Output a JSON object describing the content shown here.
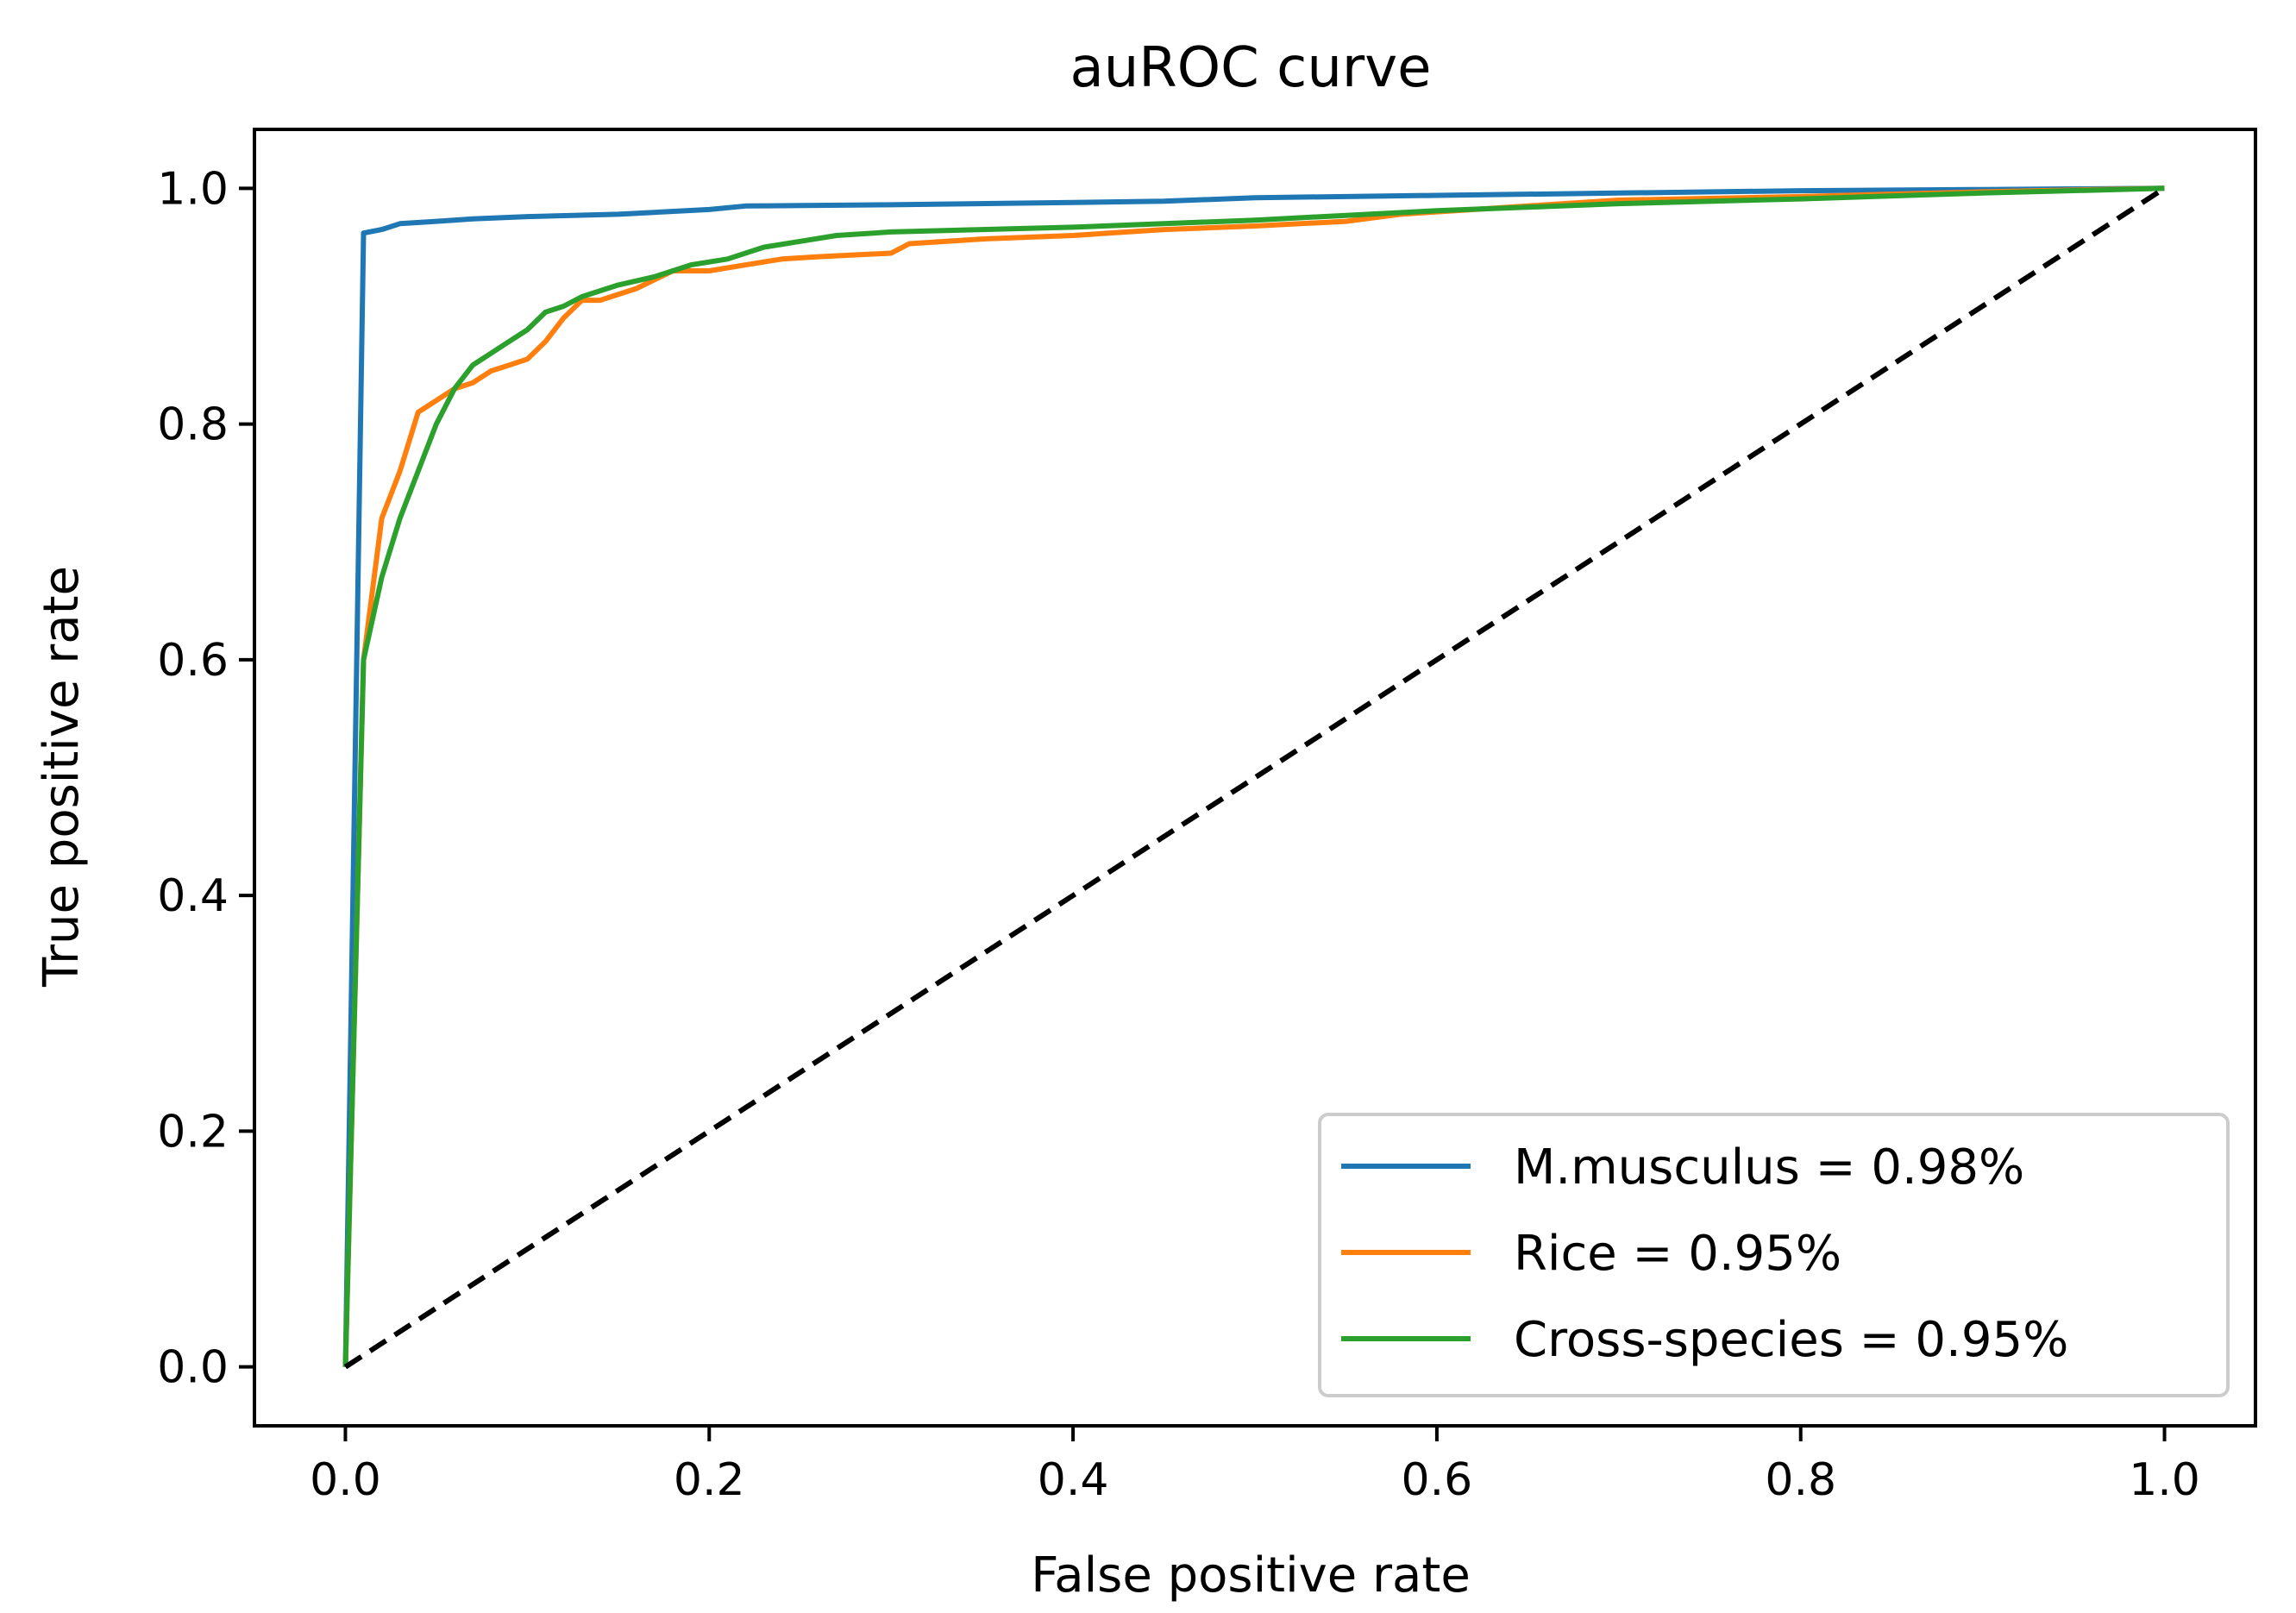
{
  "chart_data": {
    "type": "line",
    "title": "auROC curve",
    "xlabel": "False positive rate",
    "ylabel": "True positive rate",
    "xlim": [
      -0.05,
      1.05
    ],
    "ylim": [
      -0.05,
      1.05
    ],
    "xticks": [
      0.0,
      0.2,
      0.4,
      0.6,
      0.8,
      1.0
    ],
    "yticks": [
      0.0,
      0.2,
      0.4,
      0.6,
      0.8,
      1.0
    ],
    "xtick_labels": [
      "0.0",
      "0.2",
      "0.4",
      "0.6",
      "0.8",
      "1.0"
    ],
    "ytick_labels": [
      "0.0",
      "0.2",
      "0.4",
      "0.6",
      "0.8",
      "1.0"
    ],
    "legend_position": "lower-right",
    "series": [
      {
        "name": "M.musculus = 0.98%",
        "color": "#1f77b4",
        "points": [
          [
            0.0,
            0.0
          ],
          [
            0.01,
            0.962
          ],
          [
            0.02,
            0.965
          ],
          [
            0.03,
            0.97
          ],
          [
            0.05,
            0.972
          ],
          [
            0.07,
            0.974
          ],
          [
            0.1,
            0.976
          ],
          [
            0.15,
            0.978
          ],
          [
            0.2,
            0.982
          ],
          [
            0.22,
            0.985
          ],
          [
            0.3,
            0.986
          ],
          [
            0.4,
            0.988
          ],
          [
            0.45,
            0.989
          ],
          [
            0.5,
            0.992
          ],
          [
            0.6,
            0.994
          ],
          [
            0.7,
            0.996
          ],
          [
            0.8,
            0.998
          ],
          [
            0.9,
            0.999
          ],
          [
            1.0,
            1.0
          ]
        ]
      },
      {
        "name": "Rice = 0.95%",
        "color": "#ff7f0e",
        "points": [
          [
            0.0,
            0.0
          ],
          [
            0.01,
            0.6
          ],
          [
            0.02,
            0.72
          ],
          [
            0.03,
            0.76
          ],
          [
            0.04,
            0.81
          ],
          [
            0.05,
            0.82
          ],
          [
            0.06,
            0.83
          ],
          [
            0.07,
            0.835
          ],
          [
            0.08,
            0.845
          ],
          [
            0.09,
            0.85
          ],
          [
            0.1,
            0.855
          ],
          [
            0.11,
            0.87
          ],
          [
            0.12,
            0.89
          ],
          [
            0.13,
            0.905
          ],
          [
            0.14,
            0.905
          ],
          [
            0.16,
            0.915
          ],
          [
            0.18,
            0.93
          ],
          [
            0.2,
            0.93
          ],
          [
            0.22,
            0.935
          ],
          [
            0.24,
            0.94
          ],
          [
            0.26,
            0.942
          ],
          [
            0.3,
            0.945
          ],
          [
            0.31,
            0.953
          ],
          [
            0.35,
            0.957
          ],
          [
            0.4,
            0.96
          ],
          [
            0.45,
            0.965
          ],
          [
            0.5,
            0.968
          ],
          [
            0.55,
            0.972
          ],
          [
            0.58,
            0.978
          ],
          [
            0.6,
            0.98
          ],
          [
            0.7,
            0.99
          ],
          [
            0.8,
            0.993
          ],
          [
            0.9,
            0.997
          ],
          [
            1.0,
            1.0
          ]
        ]
      },
      {
        "name": "Cross-species = 0.95%",
        "color": "#2ca02c",
        "points": [
          [
            0.0,
            0.0
          ],
          [
            0.01,
            0.6
          ],
          [
            0.02,
            0.67
          ],
          [
            0.03,
            0.72
          ],
          [
            0.04,
            0.76
          ],
          [
            0.05,
            0.8
          ],
          [
            0.06,
            0.83
          ],
          [
            0.07,
            0.85
          ],
          [
            0.08,
            0.86
          ],
          [
            0.09,
            0.87
          ],
          [
            0.1,
            0.88
          ],
          [
            0.11,
            0.895
          ],
          [
            0.12,
            0.9
          ],
          [
            0.13,
            0.908
          ],
          [
            0.15,
            0.918
          ],
          [
            0.17,
            0.925
          ],
          [
            0.19,
            0.935
          ],
          [
            0.21,
            0.94
          ],
          [
            0.23,
            0.95
          ],
          [
            0.25,
            0.955
          ],
          [
            0.27,
            0.96
          ],
          [
            0.3,
            0.963
          ],
          [
            0.35,
            0.965
          ],
          [
            0.4,
            0.967
          ],
          [
            0.45,
            0.97
          ],
          [
            0.5,
            0.973
          ],
          [
            0.55,
            0.977
          ],
          [
            0.6,
            0.981
          ],
          [
            0.7,
            0.987
          ],
          [
            0.8,
            0.991
          ],
          [
            0.9,
            0.996
          ],
          [
            1.0,
            1.0
          ]
        ]
      },
      {
        "name": "diagonal",
        "color": "#000000",
        "dashed": true,
        "show_in_legend": false,
        "points": [
          [
            0.0,
            0.0
          ],
          [
            1.0,
            1.0
          ]
        ]
      }
    ]
  }
}
